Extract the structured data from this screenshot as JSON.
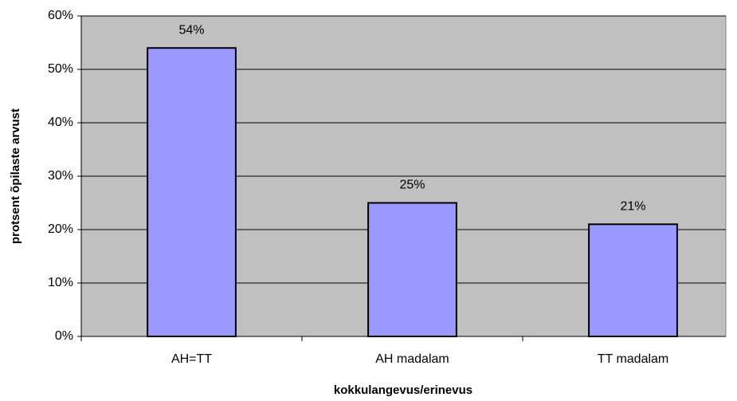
{
  "chart_data": {
    "type": "bar",
    "categories": [
      "AH=TT",
      "AH madalam",
      "TT madalam"
    ],
    "values": [
      54,
      25,
      21
    ],
    "value_labels": [
      "54%",
      "25%",
      "21%"
    ],
    "color": "#9999ff",
    "x_label": "kokkulangevus/erinevus",
    "y_label": "protsent õpilaste arvust",
    "ylim": [
      0,
      60
    ],
    "yticks": [
      {
        "value": 0,
        "label": "0%"
      },
      {
        "value": 10,
        "label": "10%"
      },
      {
        "value": 20,
        "label": "20%"
      },
      {
        "value": 30,
        "label": "30%"
      },
      {
        "value": 40,
        "label": "40%"
      },
      {
        "value": 50,
        "label": "50%"
      },
      {
        "value": 60,
        "label": "60%"
      }
    ],
    "grid": true
  }
}
